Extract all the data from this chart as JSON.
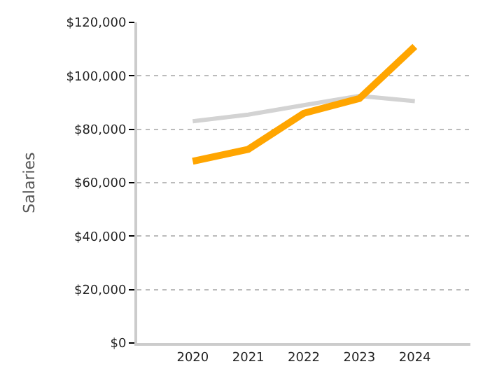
{
  "chart_data": {
    "type": "line",
    "ylabel": "Salaries",
    "categories": [
      "2020",
      "2021",
      "2022",
      "2023",
      "2024"
    ],
    "series": [
      {
        "color": "#d3d3d3",
        "values": [
          83000,
          85500,
          89000,
          92500,
          90500
        ]
      },
      {
        "color": "#ffa500",
        "values": [
          68000,
          72500,
          86000,
          91500,
          111000
        ]
      }
    ],
    "ylim": [
      0,
      120000
    ],
    "yticks": [
      {
        "value": 0,
        "label": "$0"
      },
      {
        "value": 20000,
        "label": "$20,000"
      },
      {
        "value": 40000,
        "label": "$40,000"
      },
      {
        "value": 60000,
        "label": "$60,000"
      },
      {
        "value": 80000,
        "label": "$80,000"
      },
      {
        "value": 100000,
        "label": "$100,000"
      },
      {
        "value": 120000,
        "label": "$120,000"
      }
    ],
    "grid": "y",
    "marker": "none",
    "line_style": "solid"
  }
}
